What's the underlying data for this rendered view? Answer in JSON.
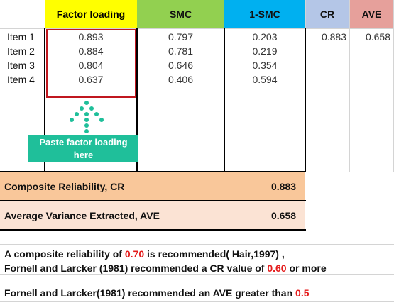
{
  "headers": {
    "factor_loading": "Factor loading",
    "smc": "SMC",
    "one_minus_smc": "1-SMC",
    "cr": "CR",
    "ave": "AVE"
  },
  "colors": {
    "factor_loading_bg": "#ffff00",
    "smc_bg": "#92d050",
    "one_minus_smc_bg": "#00b0f0",
    "cr_bg": "#b4c6e7",
    "ave_bg": "#e6a09b",
    "cr_row_bg": "#f9c79a",
    "ave_row_bg": "#fbe3d4",
    "highlight_border": "#c0171f",
    "paste_box_bg": "#1fbf9a",
    "red_text": "#e41b1b"
  },
  "items": [
    {
      "label": "Item 1",
      "loading": "0.893",
      "smc": "0.797",
      "one_minus_smc": "0.203"
    },
    {
      "label": "Item 2",
      "loading": "0.884",
      "smc": "0.781",
      "one_minus_smc": "0.219"
    },
    {
      "label": "Item 3",
      "loading": "0.804",
      "smc": "0.646",
      "one_minus_smc": "0.354"
    },
    {
      "label": "Item 4",
      "loading": "0.637",
      "smc": "0.406",
      "one_minus_smc": "0.594"
    }
  ],
  "summary_values": {
    "cr": "0.883",
    "ave": "0.658"
  },
  "paste_hint": {
    "line1": "Paste factor loading",
    "line2": "here",
    "icon": "dotted-arrow-up-icon"
  },
  "cr_row": {
    "label": "Composite Reliability, CR",
    "value": "0.883"
  },
  "ave_row": {
    "label": "Average Variance Extracted, AVE",
    "value": "0.658"
  },
  "notes": {
    "line1_a": "A composite reliability of ",
    "line1_red": "0.70",
    "line1_b": " is recommended( Hair,1997) ,",
    "line2_a": "Fornell and Larcker (1981) recommended a CR value of ",
    "line2_red": "0.60",
    "line2_b": " or more",
    "line3_a": "Fornell and Larcker(1981) recommended an AVE greater than ",
    "line3_red": "0.5"
  }
}
